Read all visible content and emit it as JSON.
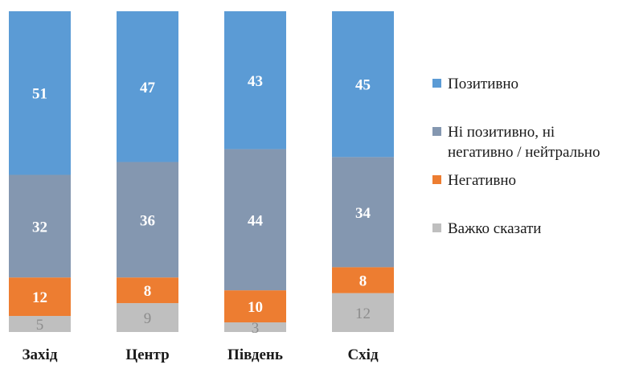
{
  "chart_data": {
    "type": "bar",
    "stacked": true,
    "orientation": "vertical",
    "percent_stacked": true,
    "categories": [
      "Захід",
      "Центр",
      "Південь",
      "Схід"
    ],
    "series": [
      {
        "name": "Важко сказати",
        "values": [
          5,
          9,
          3,
          12
        ],
        "color": "#bfbfbf"
      },
      {
        "name": "Негативно",
        "values": [
          12,
          8,
          10,
          8
        ],
        "color": "#ed7d31"
      },
      {
        "name": "Ні позитивно, ні негативно / нейтрально",
        "values": [
          32,
          36,
          44,
          34
        ],
        "color": "#8497b0"
      },
      {
        "name": "Позитивно",
        "values": [
          51,
          47,
          43,
          45
        ],
        "color": "#5b9bd5"
      }
    ],
    "legend_position": "right",
    "grid": false
  },
  "legend": {
    "items": [
      {
        "label": "Позитивно",
        "color": "#5b9bd5"
      },
      {
        "label": "Ні позитивно, ні\nнегативно / нейтрально",
        "color": "#8497b0"
      },
      {
        "label": "Негативно",
        "color": "#ed7d31"
      },
      {
        "label": "Важко сказати",
        "color": "#bfbfbf"
      }
    ]
  }
}
